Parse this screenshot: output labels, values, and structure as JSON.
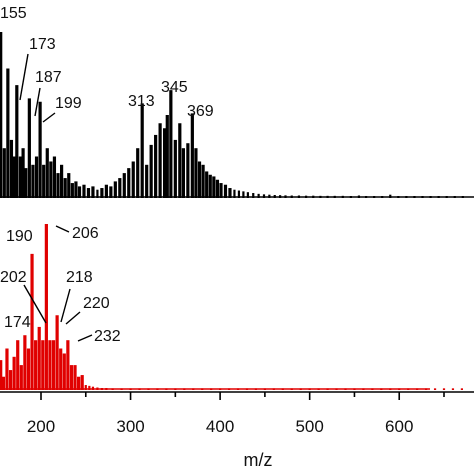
{
  "chart_data": {
    "type": "line",
    "xlabel": "m/z",
    "xlim": [
      150,
      680
    ],
    "x_ticks": [
      "200",
      "300",
      "400",
      "500",
      "600"
    ],
    "panels": [
      {
        "name": "",
        "color": "#000000",
        "labeled_peaks": [
          {
            "mz": 155,
            "label": "155"
          },
          {
            "mz": 173,
            "label": "173"
          },
          {
            "mz": 187,
            "label": "187"
          },
          {
            "mz": 199,
            "label": "199"
          },
          {
            "mz": 313,
            "label": "313"
          },
          {
            "mz": 345,
            "label": "345"
          },
          {
            "mz": 369,
            "label": "369"
          }
        ],
        "peaks": [
          [
            151,
            0.55
          ],
          [
            155,
            1.0
          ],
          [
            159,
            0.3
          ],
          [
            163,
            0.78
          ],
          [
            167,
            0.35
          ],
          [
            170,
            0.25
          ],
          [
            173,
            0.68
          ],
          [
            177,
            0.25
          ],
          [
            180,
            0.3
          ],
          [
            183,
            0.18
          ],
          [
            187,
            0.6
          ],
          [
            191,
            0.2
          ],
          [
            195,
            0.25
          ],
          [
            199,
            0.58
          ],
          [
            203,
            0.2
          ],
          [
            207,
            0.3
          ],
          [
            211,
            0.22
          ],
          [
            215,
            0.25
          ],
          [
            219,
            0.15
          ],
          [
            223,
            0.2
          ],
          [
            227,
            0.12
          ],
          [
            231,
            0.15
          ],
          [
            235,
            0.09
          ],
          [
            239,
            0.1
          ],
          [
            243,
            0.07
          ],
          [
            248,
            0.08
          ],
          [
            253,
            0.06
          ],
          [
            258,
            0.07
          ],
          [
            263,
            0.05
          ],
          [
            268,
            0.06
          ],
          [
            273,
            0.08
          ],
          [
            278,
            0.07
          ],
          [
            283,
            0.1
          ],
          [
            288,
            0.12
          ],
          [
            293,
            0.15
          ],
          [
            298,
            0.18
          ],
          [
            303,
            0.22
          ],
          [
            308,
            0.3
          ],
          [
            313,
            0.57
          ],
          [
            318,
            0.2
          ],
          [
            323,
            0.32
          ],
          [
            328,
            0.38
          ],
          [
            333,
            0.45
          ],
          [
            338,
            0.42
          ],
          [
            341,
            0.5
          ],
          [
            345,
            0.65
          ],
          [
            350,
            0.35
          ],
          [
            355,
            0.45
          ],
          [
            359,
            0.3
          ],
          [
            364,
            0.33
          ],
          [
            369,
            0.51
          ],
          [
            373,
            0.3
          ],
          [
            377,
            0.22
          ],
          [
            381,
            0.2
          ],
          [
            385,
            0.16
          ],
          [
            389,
            0.14
          ],
          [
            393,
            0.13
          ],
          [
            397,
            0.11
          ],
          [
            401,
            0.09
          ],
          [
            406,
            0.08
          ],
          [
            411,
            0.06
          ],
          [
            416,
            0.05
          ],
          [
            421,
            0.045
          ],
          [
            426,
            0.04
          ],
          [
            431,
            0.035
          ],
          [
            437,
            0.03
          ],
          [
            443,
            0.025
          ],
          [
            449,
            0.022
          ],
          [
            455,
            0.02
          ],
          [
            461,
            0.018
          ],
          [
            467,
            0.017
          ],
          [
            473,
            0.016
          ],
          [
            480,
            0.015
          ],
          [
            488,
            0.015
          ],
          [
            496,
            0.014
          ],
          [
            504,
            0.014
          ],
          [
            512,
            0.013
          ],
          [
            520,
            0.013
          ],
          [
            528,
            0.013
          ],
          [
            537,
            0.013
          ],
          [
            546,
            0.012
          ],
          [
            555,
            0.015
          ],
          [
            563,
            0.012
          ],
          [
            572,
            0.012
          ],
          [
            581,
            0.012
          ],
          [
            590,
            0.02
          ],
          [
            599,
            0.012
          ],
          [
            608,
            0.012
          ],
          [
            617,
            0.012
          ],
          [
            626,
            0.012
          ],
          [
            635,
            0.012
          ],
          [
            644,
            0.012
          ],
          [
            653,
            0.012
          ],
          [
            662,
            0.012
          ],
          [
            671,
            0.012
          ]
        ]
      },
      {
        "name": "",
        "color": "#e00000",
        "labeled_peaks": [
          {
            "mz": 174,
            "label": "174"
          },
          {
            "mz": 190,
            "label": "190"
          },
          {
            "mz": 202,
            "label": "202"
          },
          {
            "mz": 206,
            "label": "206"
          },
          {
            "mz": 218,
            "label": "218"
          },
          {
            "mz": 220,
            "label": "220"
          },
          {
            "mz": 232,
            "label": "232"
          }
        ],
        "peaks": [
          [
            151,
            0.12
          ],
          [
            155,
            0.18
          ],
          [
            158,
            0.08
          ],
          [
            162,
            0.25
          ],
          [
            166,
            0.12
          ],
          [
            170,
            0.2
          ],
          [
            174,
            0.3
          ],
          [
            178,
            0.15
          ],
          [
            182,
            0.33
          ],
          [
            186,
            0.25
          ],
          [
            190,
            0.82
          ],
          [
            194,
            0.3
          ],
          [
            198,
            0.38
          ],
          [
            202,
            0.3
          ],
          [
            206,
            1.0
          ],
          [
            210,
            0.3
          ],
          [
            214,
            0.3
          ],
          [
            218,
            0.45
          ],
          [
            222,
            0.25
          ],
          [
            226,
            0.22
          ],
          [
            230,
            0.3
          ],
          [
            234,
            0.15
          ],
          [
            238,
            0.15
          ],
          [
            242,
            0.08
          ],
          [
            246,
            0.09
          ],
          [
            250,
            0.03
          ],
          [
            254,
            0.025
          ],
          [
            258,
            0.02
          ],
          [
            263,
            0.015
          ],
          [
            268,
            0.012
          ],
          [
            273,
            0.012
          ],
          [
            280,
            0.01
          ],
          [
            290,
            0.01
          ],
          [
            300,
            0.01
          ],
          [
            310,
            0.01
          ],
          [
            320,
            0.01
          ],
          [
            330,
            0.01
          ],
          [
            340,
            0.01
          ],
          [
            350,
            0.01
          ],
          [
            360,
            0.01
          ],
          [
            370,
            0.01
          ],
          [
            380,
            0.01
          ],
          [
            390,
            0.01
          ],
          [
            400,
            0.01
          ],
          [
            410,
            0.01
          ],
          [
            420,
            0.01
          ],
          [
            430,
            0.01
          ],
          [
            440,
            0.01
          ],
          [
            450,
            0.01
          ],
          [
            460,
            0.01
          ],
          [
            470,
            0.01
          ],
          [
            480,
            0.01
          ],
          [
            490,
            0.01
          ],
          [
            500,
            0.01
          ],
          [
            510,
            0.01
          ],
          [
            520,
            0.01
          ],
          [
            530,
            0.01
          ],
          [
            540,
            0.01
          ],
          [
            550,
            0.01
          ],
          [
            560,
            0.01
          ],
          [
            570,
            0.01
          ],
          [
            580,
            0.01
          ],
          [
            590,
            0.01
          ],
          [
            600,
            0.01
          ],
          [
            610,
            0.01
          ],
          [
            620,
            0.01
          ],
          [
            630,
            0.01
          ],
          [
            640,
            0.01
          ],
          [
            650,
            0.01
          ],
          [
            660,
            0.01
          ],
          [
            670,
            0.01
          ]
        ]
      }
    ]
  }
}
